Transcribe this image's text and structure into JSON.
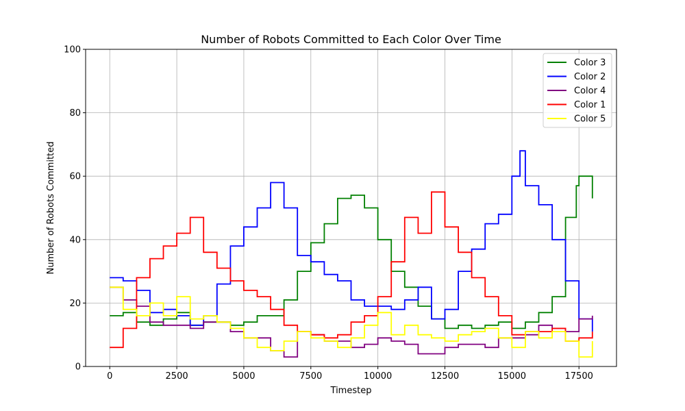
{
  "chart_data": {
    "type": "line",
    "step": true,
    "title": "Number of Robots Committed to Each Color Over Time",
    "xlabel": "Timestep",
    "ylabel": "Number of Robots Committed",
    "xlim": [
      -900,
      18900
    ],
    "ylim": [
      0,
      100
    ],
    "xticks": [
      0,
      2500,
      5000,
      7500,
      10000,
      12500,
      15000,
      17500
    ],
    "yticks": [
      0,
      20,
      40,
      60,
      80,
      100
    ],
    "grid": true,
    "legend_position": "top-right",
    "series": [
      {
        "name": "Color 3",
        "color": "#008000",
        "x": [
          0,
          500,
          1000,
          1500,
          2000,
          2500,
          3000,
          3500,
          4000,
          4500,
          5000,
          5500,
          6000,
          6500,
          7000,
          7500,
          8000,
          8500,
          9000,
          9500,
          10000,
          10500,
          11000,
          11500,
          12000,
          12500,
          13000,
          13500,
          14000,
          14500,
          15000,
          15500,
          16000,
          16500,
          17000,
          17400,
          17500,
          18000
        ],
        "values": [
          16,
          17,
          14,
          13,
          15,
          17,
          13,
          14,
          14,
          13,
          14,
          16,
          16,
          21,
          30,
          39,
          45,
          53,
          54,
          50,
          40,
          30,
          25,
          19,
          15,
          12,
          13,
          12,
          13,
          14,
          12,
          14,
          17,
          22,
          47,
          57,
          60,
          53
        ]
      },
      {
        "name": "Color 2",
        "color": "#0000ff",
        "x": [
          0,
          500,
          1000,
          1500,
          2000,
          2500,
          3000,
          3500,
          4000,
          4500,
          5000,
          5500,
          6000,
          6500,
          7000,
          7500,
          8000,
          8500,
          9000,
          9500,
          10000,
          10500,
          11000,
          11500,
          12000,
          12500,
          13000,
          13500,
          14000,
          14500,
          15000,
          15300,
          15500,
          16000,
          16500,
          17000,
          17500,
          18000
        ],
        "values": [
          28,
          27,
          24,
          17,
          18,
          16,
          13,
          16,
          26,
          38,
          44,
          50,
          58,
          50,
          35,
          33,
          29,
          27,
          21,
          19,
          19,
          18,
          21,
          25,
          15,
          18,
          30,
          37,
          45,
          48,
          60,
          68,
          57,
          51,
          40,
          27,
          15,
          11
        ]
      },
      {
        "name": "Color 4",
        "color": "#800080",
        "x": [
          0,
          500,
          1000,
          1500,
          2000,
          2500,
          3000,
          3500,
          4000,
          4500,
          5000,
          5500,
          6000,
          6500,
          7000,
          7500,
          8000,
          8500,
          9000,
          9500,
          10000,
          10500,
          11000,
          11500,
          12000,
          12500,
          13000,
          13500,
          14000,
          14500,
          15000,
          15500,
          16000,
          16500,
          17000,
          17500,
          18000
        ],
        "values": [
          25,
          21,
          19,
          14,
          13,
          13,
          12,
          14,
          14,
          11,
          9,
          9,
          5,
          3,
          11,
          10,
          8,
          8,
          6,
          7,
          9,
          8,
          7,
          4,
          4,
          6,
          7,
          7,
          6,
          9,
          9,
          10,
          13,
          12,
          11,
          15,
          16
        ]
      },
      {
        "name": "Color 1",
        "color": "#ff0000",
        "x": [
          0,
          500,
          1000,
          1500,
          2000,
          2500,
          3000,
          3500,
          4000,
          4500,
          5000,
          5500,
          6000,
          6500,
          7000,
          7500,
          8000,
          8500,
          9000,
          9500,
          10000,
          10500,
          11000,
          11500,
          12000,
          12500,
          13000,
          13500,
          14000,
          14500,
          15000,
          15500,
          16000,
          16500,
          17000,
          17500,
          18000
        ],
        "values": [
          6,
          12,
          28,
          34,
          38,
          42,
          47,
          36,
          31,
          27,
          24,
          22,
          18,
          13,
          11,
          10,
          9,
          10,
          14,
          16,
          22,
          33,
          47,
          42,
          55,
          44,
          36,
          28,
          22,
          16,
          10,
          11,
          11,
          12,
          8,
          9,
          11
        ]
      },
      {
        "name": "Color 5",
        "color": "#ffff00",
        "x": [
          0,
          500,
          1000,
          1500,
          2000,
          2500,
          3000,
          3500,
          4000,
          4500,
          5000,
          5500,
          6000,
          6500,
          7000,
          7500,
          8000,
          8500,
          9000,
          9500,
          10000,
          10500,
          11000,
          11500,
          12000,
          12500,
          13000,
          13500,
          14000,
          14500,
          15000,
          15500,
          16000,
          16500,
          17000,
          17500,
          18000
        ],
        "values": [
          25,
          18,
          16,
          20,
          16,
          22,
          15,
          16,
          14,
          12,
          9,
          6,
          5,
          8,
          11,
          9,
          8,
          6,
          9,
          13,
          17,
          10,
          13,
          10,
          9,
          8,
          10,
          11,
          12,
          9,
          6,
          11,
          9,
          11,
          8,
          3,
          8
        ]
      }
    ]
  }
}
